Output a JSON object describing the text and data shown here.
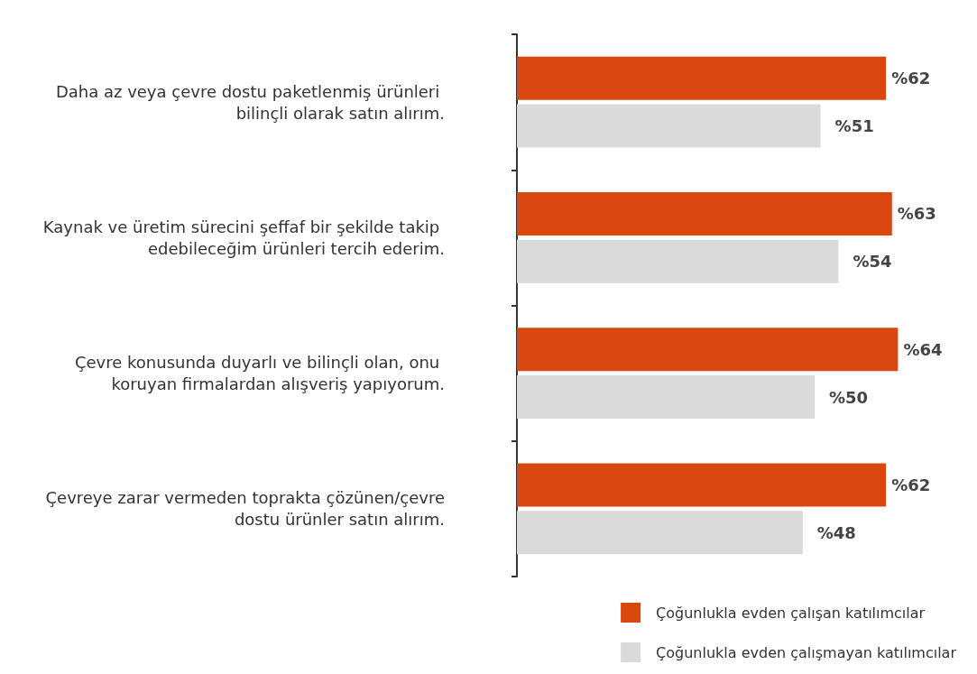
{
  "chart_data": {
    "type": "bar",
    "orientation": "horizontal",
    "categories": [
      "Daha az veya çevre dostu paketlenmiş ürünleri bilinçli olarak satın alırım.",
      "Kaynak ve üretim sürecini şeffaf bir şekilde takip edebileceğim ürünleri tercih ederim.",
      "Çevre konusunda duyarlı ve bilinçli olan, onu koruyan firmalardan alışveriş yapıyorum.",
      "Çevreye zarar vermeden toprakta çözünen/çevre dostu ürünler satın alırım."
    ],
    "series": [
      {
        "name": "Çoğunlukla evden çalışan katılımcılar",
        "color": "#d9480f",
        "values": [
          62,
          63,
          64,
          62
        ],
        "value_labels": [
          "%62",
          "%63",
          "%64",
          "%62"
        ]
      },
      {
        "name": "Çoğunlukla evden çalışmayan katılımcılar",
        "color": "#dadada",
        "values": [
          51,
          54,
          50,
          48
        ],
        "value_labels": [
          "%51",
          "%54",
          "%50",
          "%48"
        ]
      }
    ],
    "legend": "bottom right",
    "grid": false,
    "tick_labels": "y"
  }
}
